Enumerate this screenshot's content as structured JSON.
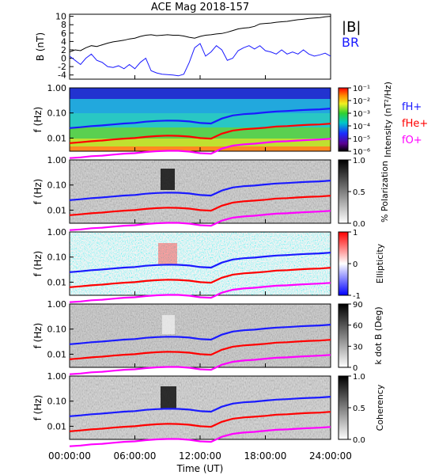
{
  "chart_data": {
    "type": "line",
    "title": "ACE Mag 2018-157",
    "xlabel": "Time (UT)",
    "x_ticks": [
      "00:00:00",
      "06:00:00",
      "12:00:00",
      "18:00:00",
      "24:00:00"
    ],
    "x_range_hours": [
      0,
      24
    ],
    "panels": [
      {
        "type": "line",
        "ylabel": "B (nT)",
        "ylim": [
          -5,
          10.5
        ],
        "y_ticks": [
          10,
          8,
          6,
          4,
          2,
          0,
          -2,
          -4
        ],
        "legend": [
          "|B|",
          "BR"
        ],
        "legend_placement": "right",
        "series": [
          {
            "name": "|B|",
            "color": "#000000",
            "x": [
              0,
              0.5,
              1,
              1.5,
              2,
              2.5,
              3,
              3.5,
              4,
              4.5,
              5,
              5.5,
              6,
              6.5,
              7,
              7.5,
              8,
              8.5,
              9,
              9.5,
              10,
              10.5,
              11,
              11.5,
              12,
              12.5,
              13,
              13.5,
              14,
              14.5,
              15,
              15.5,
              16,
              16.5,
              17,
              17.5,
              18,
              18.5,
              19,
              19.5,
              20,
              20.5,
              21,
              21.5,
              22,
              22.5,
              23,
              23.5,
              24
            ],
            "y": [
              1.5,
              2.0,
              1.8,
              2.5,
              3.0,
              2.8,
              3.2,
              3.6,
              3.9,
              4.1,
              4.3,
              4.6,
              4.8,
              5.2,
              5.5,
              5.6,
              5.4,
              5.5,
              5.6,
              5.5,
              5.5,
              5.3,
              5.0,
              4.8,
              5.2,
              5.5,
              5.6,
              5.8,
              5.9,
              6.2,
              6.6,
              7.0,
              7.2,
              7.3,
              7.6,
              8.2,
              8.3,
              8.4,
              8.6,
              8.7,
              8.8,
              9.0,
              9.2,
              9.3,
              9.5,
              9.6,
              9.7,
              9.9,
              10.0
            ]
          },
          {
            "name": "BR",
            "color": "#1a1aff",
            "x": [
              0,
              0.5,
              1,
              1.5,
              2,
              2.5,
              3,
              3.5,
              4,
              4.5,
              5,
              5.5,
              6,
              6.5,
              7,
              7.5,
              8,
              8.5,
              9,
              9.5,
              10,
              10.5,
              11,
              11.5,
              12,
              12.5,
              13,
              13.5,
              14,
              14.5,
              15,
              15.5,
              16,
              16.5,
              17,
              17.5,
              18,
              18.5,
              19,
              19.5,
              20,
              20.5,
              21,
              21.5,
              22,
              22.5,
              23,
              23.5,
              24
            ],
            "y": [
              0.5,
              -0.5,
              -1.5,
              0.0,
              1.0,
              -0.5,
              -1.0,
              -2.0,
              -2.2,
              -1.8,
              -2.5,
              -1.5,
              -2.5,
              -1.0,
              0.0,
              -3.0,
              -3.5,
              -3.8,
              -3.9,
              -4.0,
              -4.2,
              -3.8,
              -1.0,
              2.5,
              3.5,
              0.5,
              1.5,
              3.0,
              2.0,
              -0.5,
              0.0,
              1.8,
              2.5,
              3.0,
              2.2,
              3.0,
              1.8,
              1.5,
              1.0,
              2.0,
              1.0,
              1.5,
              1.0,
              2.0,
              1.0,
              0.5,
              0.8,
              1.2,
              0.5
            ]
          }
        ]
      },
      {
        "type": "heatmap",
        "ylabel": "f (Hz)",
        "yscale": "log",
        "ylim": [
          0.003,
          1.0
        ],
        "y_ticks": [
          "1.00",
          "0.10",
          "0.01"
        ],
        "colorbar_label": "Intensity (nT²/Hz)",
        "colorbar_ticks": [
          "10⁻¹",
          "10⁻²",
          "10⁻³",
          "10⁻⁴",
          "10⁻⁵",
          "10⁻⁶"
        ],
        "colorscale": "rainbow",
        "legend": [
          "fH+",
          "fHe+",
          "fO+"
        ]
      },
      {
        "type": "heatmap",
        "ylabel": "f (Hz)",
        "yscale": "log",
        "y_ticks": [
          "1.00",
          "0.10",
          "0.01"
        ],
        "colorbar_label": "% Polarization",
        "colorbar_ticks": [
          "1.0",
          "0.5",
          "0.0"
        ],
        "colorscale": "gray"
      },
      {
        "type": "heatmap",
        "ylabel": "f (Hz)",
        "yscale": "log",
        "y_ticks": [
          "1.00",
          "0.10",
          "0.01"
        ],
        "colorbar_label": "Ellipticity",
        "colorbar_ticks": [
          "1",
          "0",
          "-1"
        ],
        "colorscale": "blue-white-red"
      },
      {
        "type": "heatmap",
        "ylabel": "f (Hz)",
        "yscale": "log",
        "y_ticks": [
          "1.00",
          "0.10",
          "0.01"
        ],
        "colorbar_label": "k dot B (Deg)",
        "colorbar_ticks": [
          "90",
          "60",
          "30",
          "0"
        ],
        "colorscale": "gray"
      },
      {
        "type": "heatmap",
        "ylabel": "f (Hz)",
        "yscale": "log",
        "y_ticks": [
          "1.00",
          "0.10",
          "0.01"
        ],
        "colorbar_label": "Coherency",
        "colorbar_ticks": [
          "1.0",
          "0.5",
          "0.0"
        ],
        "colorscale": "gray"
      }
    ],
    "gyrofrequency_curves": [
      {
        "name": "fH+",
        "color": "#1a1aff",
        "x": [
          0,
          1,
          2,
          3,
          4,
          5,
          6,
          7,
          8,
          9,
          10,
          11,
          12,
          13,
          14,
          15,
          16,
          17,
          18,
          19,
          20,
          21,
          22,
          23,
          24
        ],
        "y": [
          0.025,
          0.027,
          0.03,
          0.032,
          0.035,
          0.038,
          0.04,
          0.045,
          0.048,
          0.05,
          0.049,
          0.046,
          0.04,
          0.038,
          0.06,
          0.08,
          0.09,
          0.095,
          0.105,
          0.115,
          0.12,
          0.128,
          0.135,
          0.14,
          0.15
        ]
      },
      {
        "name": "fHe+",
        "color": "#ff0000",
        "x": [
          0,
          1,
          2,
          3,
          4,
          5,
          6,
          7,
          8,
          9,
          10,
          11,
          12,
          13,
          14,
          15,
          16,
          17,
          18,
          19,
          20,
          21,
          22,
          23,
          24
        ],
        "y": [
          0.0063,
          0.0068,
          0.0075,
          0.008,
          0.0088,
          0.0095,
          0.01,
          0.0112,
          0.012,
          0.0125,
          0.0123,
          0.0115,
          0.01,
          0.0095,
          0.015,
          0.02,
          0.0225,
          0.024,
          0.026,
          0.029,
          0.03,
          0.032,
          0.034,
          0.035,
          0.0375
        ]
      },
      {
        "name": "fO+",
        "color": "#ff00ff",
        "x": [
          0,
          1,
          2,
          3,
          4,
          5,
          6,
          7,
          8,
          9,
          10,
          11,
          12,
          13,
          14,
          15,
          16,
          17,
          18,
          19,
          20,
          21,
          22,
          23,
          24
        ],
        "y": [
          0.0016,
          0.0017,
          0.0019,
          0.002,
          0.0022,
          0.0024,
          0.0025,
          0.0028,
          0.003,
          0.0031,
          0.0031,
          0.0029,
          0.0025,
          0.0024,
          0.0038,
          0.005,
          0.0056,
          0.006,
          0.0066,
          0.0072,
          0.0075,
          0.008,
          0.0084,
          0.0088,
          0.0094
        ]
      }
    ]
  }
}
